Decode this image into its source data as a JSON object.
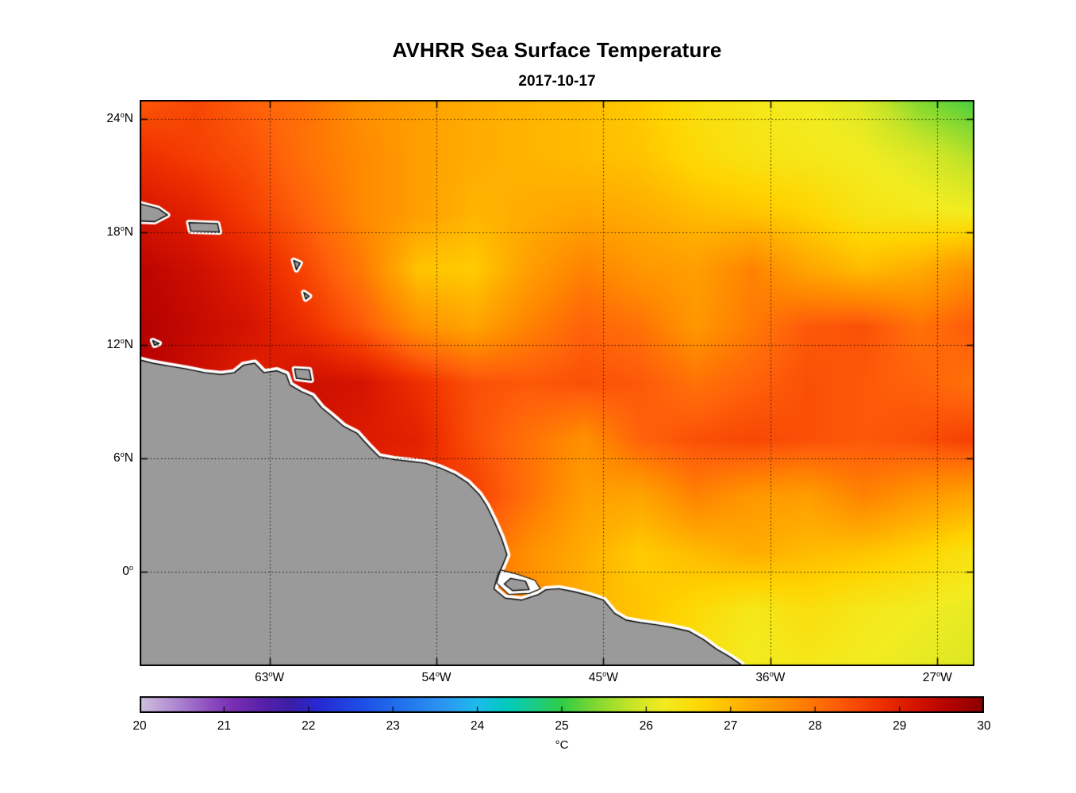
{
  "chart_data": {
    "type": "heatmap",
    "title": "AVHRR Sea Surface Temperature",
    "date": "2017-10-17",
    "units": "°C",
    "xlim": [
      -70,
      -25
    ],
    "ylim": [
      -5,
      25
    ],
    "grid": true,
    "x_ticks": [
      {
        "value": -63,
        "label": "63°W"
      },
      {
        "value": -54,
        "label": "54°W"
      },
      {
        "value": -45,
        "label": "45°W"
      },
      {
        "value": -36,
        "label": "36°W"
      },
      {
        "value": -27,
        "label": "27°W"
      }
    ],
    "y_ticks": [
      {
        "value": 24,
        "label": "24°N"
      },
      {
        "value": 18,
        "label": "18°N"
      },
      {
        "value": 12,
        "label": "12°N"
      },
      {
        "value": 6,
        "label": "6°N"
      },
      {
        "value": 0,
        "label": "0°"
      }
    ],
    "lon": [
      -70,
      -67,
      -64,
      -61,
      -58,
      -55,
      -52,
      -49,
      -46,
      -43,
      -40,
      -37,
      -34,
      -31,
      -28,
      -25
    ],
    "lat": [
      25,
      22,
      19,
      16,
      13,
      10,
      7,
      4,
      1,
      -2,
      -5
    ],
    "sst": [
      [
        28.3,
        28.5,
        28.2,
        28.0,
        27.6,
        27.4,
        27.2,
        27.1,
        27.0,
        26.8,
        26.5,
        26.3,
        26.2,
        26.0,
        25.4,
        25.1
      ],
      [
        28.8,
        28.6,
        28.4,
        28.0,
        27.7,
        27.4,
        27.2,
        27.1,
        27.0,
        26.9,
        26.6,
        26.4,
        26.3,
        26.2,
        26.0,
        25.7
      ],
      [
        29.2,
        29.0,
        28.6,
        28.2,
        27.7,
        27.4,
        27.1,
        27.2,
        27.3,
        27.2,
        27.0,
        26.9,
        26.7,
        26.4,
        26.3,
        26.2
      ],
      [
        29.5,
        29.3,
        29.0,
        28.5,
        27.9,
        26.9,
        26.8,
        27.4,
        27.8,
        27.5,
        27.4,
        27.8,
        27.3,
        27.0,
        27.2,
        27.6
      ],
      [
        29.6,
        29.4,
        29.2,
        28.8,
        28.3,
        27.6,
        27.3,
        27.8,
        28.2,
        28.0,
        27.5,
        27.9,
        28.3,
        28.4,
        28.0,
        28.3
      ],
      [
        29.5,
        29.3,
        29.0,
        29.3,
        29.2,
        28.8,
        28.4,
        28.3,
        28.4,
        28.3,
        28.0,
        28.2,
        28.4,
        28.3,
        28.2,
        28.0
      ],
      [
        29.3,
        29.2,
        29.1,
        29.2,
        29.1,
        29.0,
        28.4,
        28.0,
        27.6,
        28.2,
        28.4,
        28.5,
        28.4,
        28.3,
        28.4,
        28.6
      ],
      [
        29.0,
        29.0,
        29.0,
        29.0,
        28.9,
        28.8,
        28.6,
        28.0,
        27.4,
        27.3,
        27.8,
        27.5,
        27.4,
        27.8,
        27.5,
        27.3
      ],
      [
        28.8,
        28.8,
        28.8,
        28.8,
        28.8,
        28.7,
        28.2,
        27.6,
        27.2,
        26.8,
        27.0,
        27.2,
        27.0,
        26.9,
        26.7,
        26.4
      ],
      [
        28.6,
        28.6,
        28.6,
        28.6,
        28.6,
        28.5,
        28.2,
        27.6,
        27.1,
        26.9,
        26.6,
        26.3,
        26.5,
        26.3,
        26.2,
        26.1
      ],
      [
        28.5,
        28.5,
        28.5,
        28.5,
        28.5,
        28.4,
        28.1,
        27.6,
        27.2,
        26.8,
        26.4,
        26.2,
        26.3,
        26.2,
        26.1,
        26.0
      ]
    ],
    "colorbar": {
      "min": 20,
      "max": 30,
      "label": "°C",
      "ticks": [
        20,
        21,
        22,
        23,
        24,
        25,
        26,
        27,
        28,
        29,
        30
      ],
      "stops": [
        [
          20.0,
          "#d0c2de"
        ],
        [
          20.4,
          "#b08cd2"
        ],
        [
          20.8,
          "#8f52c2"
        ],
        [
          21.1,
          "#7a2fb4"
        ],
        [
          21.45,
          "#5a20a8"
        ],
        [
          21.8,
          "#3a1ea8"
        ],
        [
          22.1,
          "#2828d2"
        ],
        [
          22.6,
          "#1e4ce6"
        ],
        [
          23.1,
          "#2272ec"
        ],
        [
          23.6,
          "#2c96f2"
        ],
        [
          24.0,
          "#1ebcec"
        ],
        [
          24.35,
          "#00cabe"
        ],
        [
          24.7,
          "#1ecc82"
        ],
        [
          25.0,
          "#30cc46"
        ],
        [
          25.4,
          "#80d832"
        ],
        [
          25.8,
          "#c4e428"
        ],
        [
          26.2,
          "#f2ec20"
        ],
        [
          26.7,
          "#ffd400"
        ],
        [
          27.2,
          "#ffac00"
        ],
        [
          27.7,
          "#ff8a00"
        ],
        [
          28.2,
          "#ff620a"
        ],
        [
          28.7,
          "#f23600"
        ],
        [
          29.1,
          "#dc1a00"
        ],
        [
          29.5,
          "#bc0400"
        ],
        [
          30.0,
          "#8a0000"
        ]
      ]
    },
    "land": {
      "fill": "#9a9a9a",
      "coast_halo": "#ffffff",
      "coastline": "#000000",
      "mainland": [
        [
          -70.5,
          11.35
        ],
        [
          -69.3,
          11.05
        ],
        [
          -68.4,
          10.9
        ],
        [
          -67.5,
          10.75
        ],
        [
          -66.5,
          10.55
        ],
        [
          -65.6,
          10.45
        ],
        [
          -64.9,
          10.55
        ],
        [
          -64.4,
          10.95
        ],
        [
          -63.8,
          11.05
        ],
        [
          -63.3,
          10.55
        ],
        [
          -62.6,
          10.65
        ],
        [
          -62.1,
          10.45
        ],
        [
          -61.9,
          9.9
        ],
        [
          -61.3,
          9.55
        ],
        [
          -60.7,
          9.3
        ],
        [
          -60.2,
          8.7
        ],
        [
          -59.7,
          8.3
        ],
        [
          -59.0,
          7.7
        ],
        [
          -58.3,
          7.35
        ],
        [
          -57.6,
          6.6
        ],
        [
          -57.1,
          6.1
        ],
        [
          -56.3,
          5.95
        ],
        [
          -55.4,
          5.85
        ],
        [
          -54.6,
          5.75
        ],
        [
          -53.8,
          5.5
        ],
        [
          -53.0,
          5.15
        ],
        [
          -52.3,
          4.7
        ],
        [
          -51.7,
          4.1
        ],
        [
          -51.3,
          3.5
        ],
        [
          -50.9,
          2.7
        ],
        [
          -50.5,
          1.8
        ],
        [
          -50.2,
          0.9
        ],
        [
          -50.45,
          0.3
        ],
        [
          -50.7,
          -0.2
        ],
        [
          -50.9,
          -0.9
        ],
        [
          -50.3,
          -1.4
        ],
        [
          -49.4,
          -1.5
        ],
        [
          -48.5,
          -1.2
        ],
        [
          -48.1,
          -0.95
        ],
        [
          -47.4,
          -0.9
        ],
        [
          -46.6,
          -1.05
        ],
        [
          -45.8,
          -1.25
        ],
        [
          -45.0,
          -1.5
        ],
        [
          -44.4,
          -2.2
        ],
        [
          -43.8,
          -2.55
        ],
        [
          -43.0,
          -2.7
        ],
        [
          -42.2,
          -2.8
        ],
        [
          -41.3,
          -2.95
        ],
        [
          -40.4,
          -3.15
        ],
        [
          -39.6,
          -3.6
        ],
        [
          -38.9,
          -4.1
        ],
        [
          -38.2,
          -4.5
        ],
        [
          -37.6,
          -4.9
        ],
        [
          -37.3,
          -5.4
        ],
        [
          -70.5,
          -5.4
        ]
      ],
      "estuary": [
        [
          -50.55,
          0.1
        ],
        [
          -49.6,
          -0.15
        ],
        [
          -48.7,
          -0.45
        ],
        [
          -48.4,
          -0.9
        ],
        [
          -49.0,
          -1.15
        ],
        [
          -50.1,
          -1.2
        ],
        [
          -50.75,
          -0.6
        ]
      ],
      "estuary_island": [
        [
          -50.0,
          -0.35
        ],
        [
          -49.2,
          -0.5
        ],
        [
          -49.0,
          -0.95
        ],
        [
          -49.9,
          -1.0
        ],
        [
          -50.35,
          -0.65
        ]
      ],
      "islands": [
        [
          [
            -70.4,
            19.6
          ],
          [
            -69.0,
            19.25
          ],
          [
            -68.5,
            18.9
          ],
          [
            -69.2,
            18.55
          ],
          [
            -70.4,
            18.6
          ]
        ],
        [
          [
            -67.35,
            18.5
          ],
          [
            -65.8,
            18.45
          ],
          [
            -65.7,
            18.0
          ],
          [
            -67.25,
            18.05
          ]
        ],
        [
          [
            -61.7,
            16.5
          ],
          [
            -61.35,
            16.35
          ],
          [
            -61.55,
            16.0
          ]
        ],
        [
          [
            -61.15,
            14.8
          ],
          [
            -60.85,
            14.6
          ],
          [
            -61.05,
            14.45
          ]
        ],
        [
          [
            -69.3,
            12.25
          ],
          [
            -68.95,
            12.1
          ],
          [
            -69.2,
            12.0
          ]
        ],
        [
          [
            -61.65,
            10.75
          ],
          [
            -60.85,
            10.7
          ],
          [
            -60.75,
            10.15
          ],
          [
            -61.55,
            10.25
          ]
        ]
      ]
    }
  }
}
